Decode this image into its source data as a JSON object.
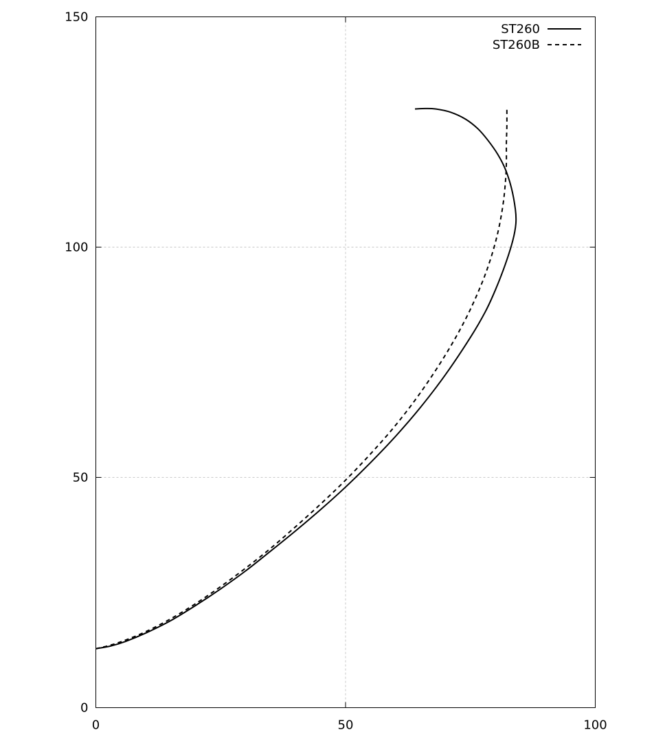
{
  "chart_data": {
    "type": "line",
    "title": "",
    "xlabel": "",
    "ylabel": "",
    "xlim": [
      0,
      100
    ],
    "ylim": [
      0,
      150
    ],
    "xticks": [
      "0",
      "50",
      "100"
    ],
    "yticks": [
      "0",
      "50",
      "100",
      "150"
    ],
    "grid": true,
    "legend_position": "top-right",
    "series": [
      {
        "name": "ST260",
        "style": "solid",
        "color": "#000000",
        "points": [
          [
            0,
            12.8
          ],
          [
            3,
            13.4
          ],
          [
            6,
            14.4
          ],
          [
            10,
            16.2
          ],
          [
            15,
            18.9
          ],
          [
            20,
            22.2
          ],
          [
            25,
            25.8
          ],
          [
            30,
            29.7
          ],
          [
            35,
            34.0
          ],
          [
            40,
            38.4
          ],
          [
            45,
            43.0
          ],
          [
            50,
            47.9
          ],
          [
            55,
            53.2
          ],
          [
            60,
            58.9
          ],
          [
            65,
            65.2
          ],
          [
            70,
            72.3
          ],
          [
            75,
            80.4
          ],
          [
            78,
            86.0
          ],
          [
            80,
            90.7
          ],
          [
            82,
            96.3
          ],
          [
            83.5,
            101.5
          ],
          [
            84.1,
            105.1
          ],
          [
            84.0,
            108.2
          ],
          [
            83.2,
            112.9
          ],
          [
            82.0,
            116.9
          ],
          [
            80.5,
            120.1
          ],
          [
            78.5,
            123.2
          ],
          [
            76.5,
            125.7
          ],
          [
            74,
            127.8
          ],
          [
            71,
            129.3
          ],
          [
            68,
            130.0
          ],
          [
            66,
            130.1
          ],
          [
            63.9,
            130.0
          ]
        ]
      },
      {
        "name": "ST260B",
        "style": "dashed",
        "color": "#000000",
        "points": [
          [
            0,
            12.8
          ],
          [
            3,
            13.6
          ],
          [
            6,
            14.7
          ],
          [
            10,
            16.5
          ],
          [
            15,
            19.3
          ],
          [
            20,
            22.6
          ],
          [
            25,
            26.3
          ],
          [
            30,
            30.3
          ],
          [
            35,
            34.6
          ],
          [
            40,
            39.3
          ],
          [
            45,
            44.2
          ],
          [
            50,
            49.4
          ],
          [
            55,
            55.1
          ],
          [
            60,
            61.3
          ],
          [
            65,
            68.4
          ],
          [
            70,
            76.6
          ],
          [
            74,
            84.3
          ],
          [
            77,
            91.4
          ],
          [
            79,
            97.3
          ],
          [
            80.5,
            103.2
          ],
          [
            81.5,
            109.0
          ],
          [
            82.0,
            114.0
          ],
          [
            82.2,
            118.2
          ],
          [
            82.2,
            122.5
          ],
          [
            82.3,
            126.3
          ],
          [
            82.3,
            130.0
          ]
        ]
      }
    ]
  }
}
